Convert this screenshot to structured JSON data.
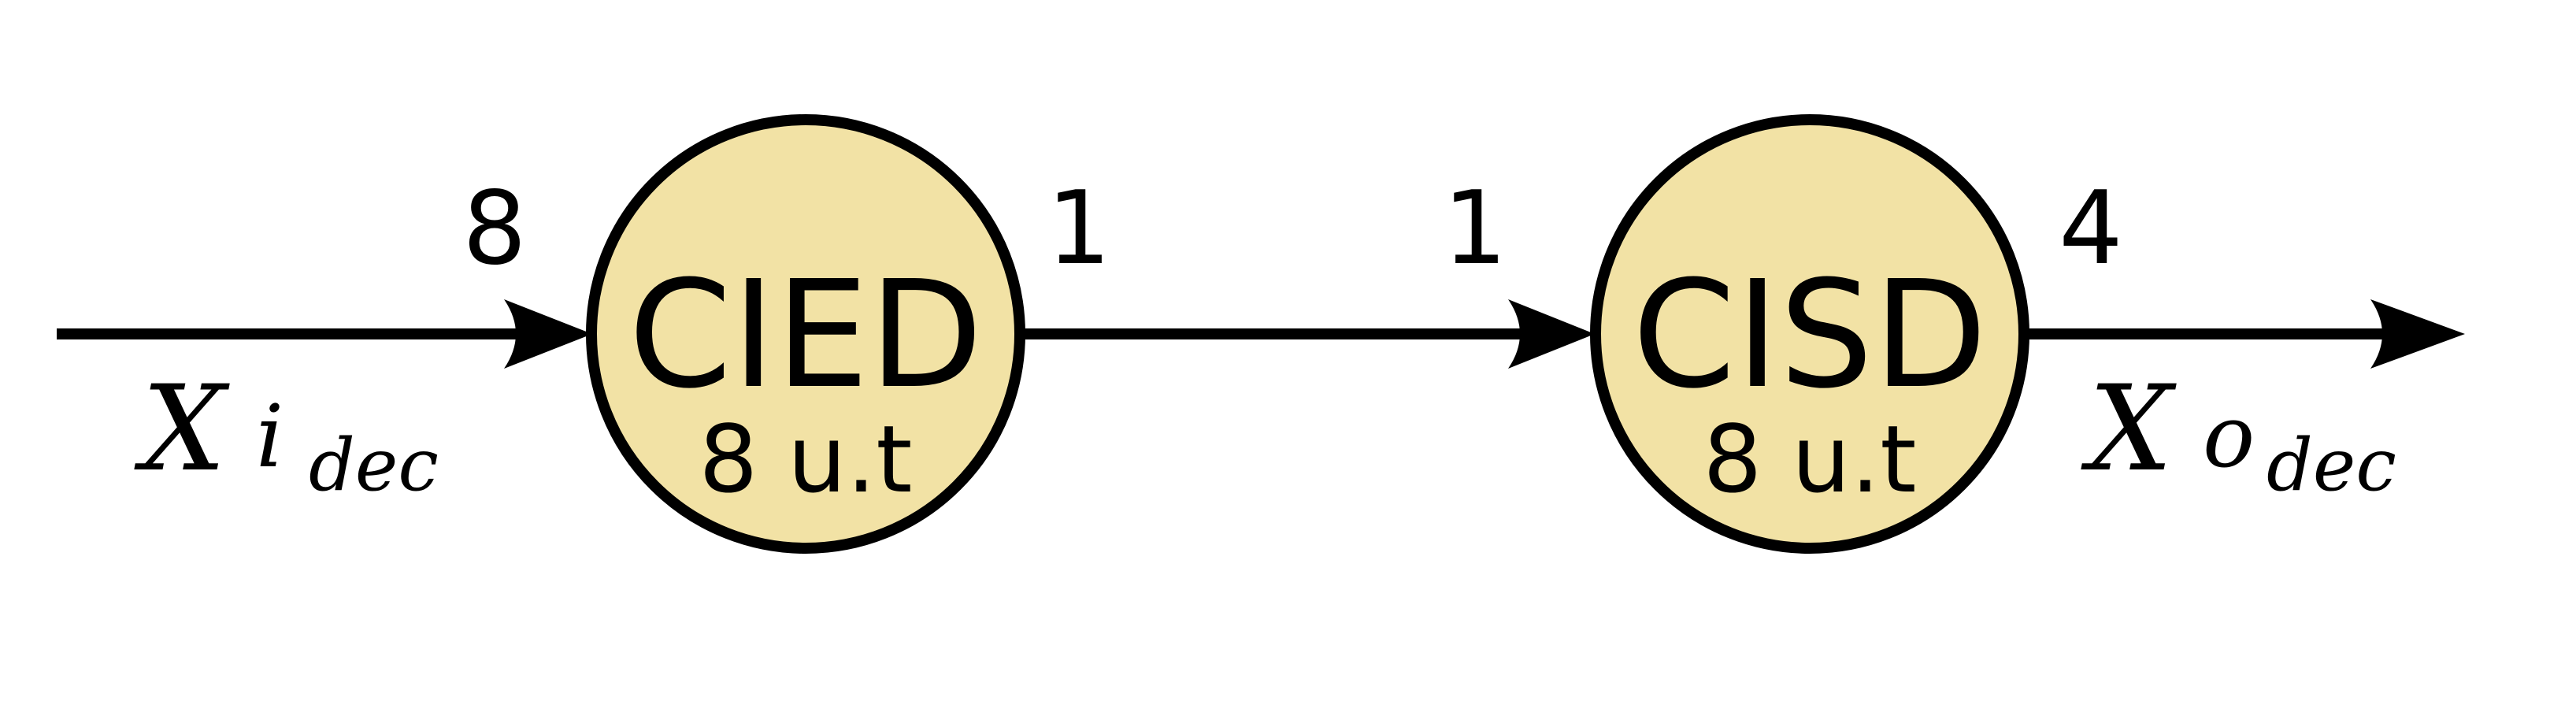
{
  "colors": {
    "node_fill": "#f2e2a5",
    "stroke": "#000000",
    "background": "#ffffff"
  },
  "nodes": [
    {
      "name": "CIED",
      "time": "8 u.t"
    },
    {
      "name": "CISD",
      "time": "8 u.t"
    }
  ],
  "edges": [
    {
      "from": "input",
      "to": "CIED",
      "rate_in": "8"
    },
    {
      "from": "CIED",
      "to": "CISD",
      "rate_out": "1",
      "rate_in": "1"
    },
    {
      "from": "CISD",
      "to": "output",
      "rate_out": "4"
    }
  ],
  "signals": {
    "input": {
      "main": "X",
      "letter": "i",
      "sub": "dec"
    },
    "output": {
      "main": "X",
      "letter": "o",
      "sub": "dec"
    }
  }
}
